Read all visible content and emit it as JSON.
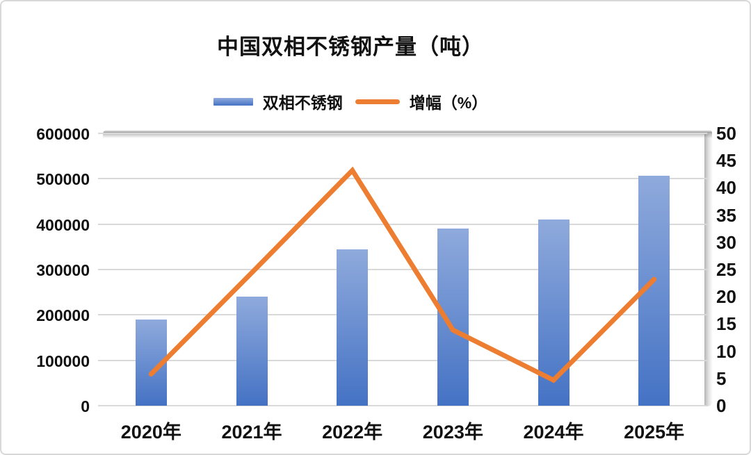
{
  "title": "中国双相不锈钢产量（吨）",
  "legend": {
    "bar_label": "双相不锈钢",
    "line_label": "增幅（%）"
  },
  "colors": {
    "bar_gradient_top": "#8FAADC",
    "bar_gradient_bottom": "#4472C4",
    "line": "#ED7D31",
    "gridline": "#D9D9D9",
    "text": "#111111",
    "frame_border": "#D8D8D8"
  },
  "chart_data": {
    "type": "bar",
    "subtype": "combo-bar-line-dual-axis",
    "title": "中国双相不锈钢产量（吨）",
    "categories": [
      "2020年",
      "2021年",
      "2022年",
      "2023年",
      "2024年",
      "2025年"
    ],
    "series": [
      {
        "name": "双相不锈钢",
        "type": "bar",
        "axis": "left",
        "values": [
          190000,
          240000,
          345000,
          390000,
          410000,
          507000
        ]
      },
      {
        "name": "增幅（%）",
        "type": "line",
        "axis": "right",
        "values": [
          5.8,
          24.4,
          43.2,
          13.9,
          4.7,
          23.2
        ]
      }
    ],
    "left_axis": {
      "min": 0,
      "max": 600000,
      "step": 100000,
      "tick_labels": [
        "600000",
        "500000",
        "400000",
        "300000",
        "200000",
        "100000",
        "0"
      ]
    },
    "right_axis": {
      "min": 0,
      "max": 50,
      "step": 5,
      "tick_labels": [
        "50",
        "45",
        "40",
        "35",
        "30",
        "25",
        "20",
        "15",
        "10",
        "5",
        "0"
      ]
    },
    "grid": true,
    "legend_position": "top-center"
  }
}
